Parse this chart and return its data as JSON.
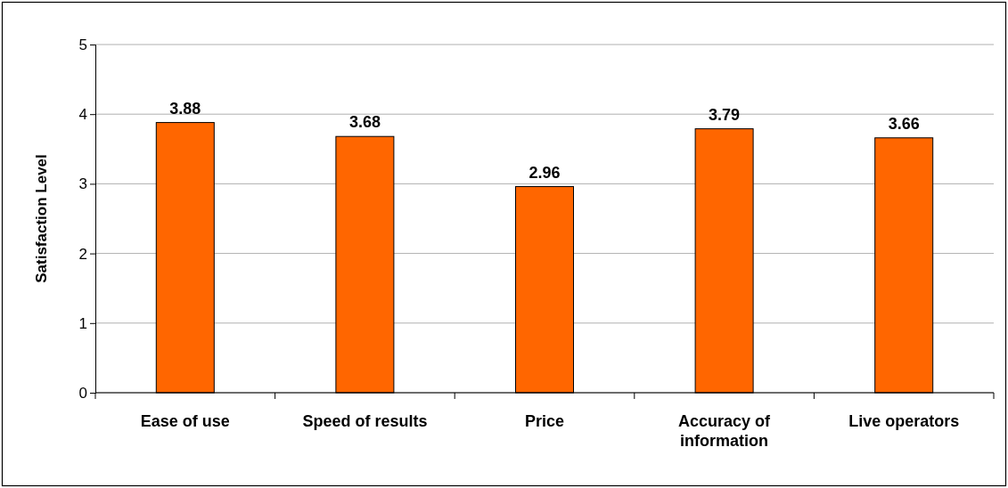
{
  "chart_data": {
    "type": "bar",
    "ylabel": "Satisfaction Level",
    "categories": [
      "Ease of use",
      "Speed of results",
      "Price",
      "Accuracy of information",
      "Live operators"
    ],
    "values": [
      3.88,
      3.68,
      2.96,
      3.79,
      3.66
    ],
    "color": "#ff6600",
    "ylim": [
      0,
      5
    ],
    "yticks": [
      0,
      1,
      2,
      3,
      4,
      5
    ],
    "grid": "y",
    "data_labels": true
  }
}
